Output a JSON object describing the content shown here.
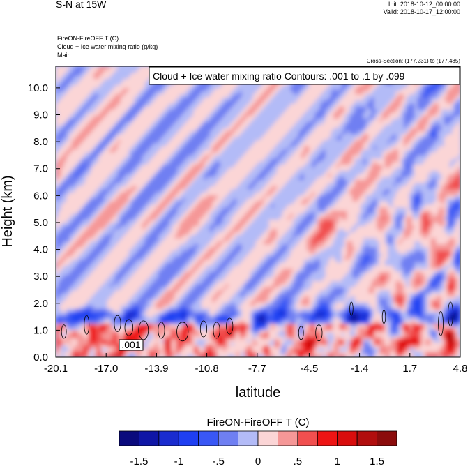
{
  "header": {
    "title": "S-N at 15W",
    "init": "Init: 2018-10-12_00:00:00",
    "valid": "Valid: 2018-10-17_12:00:00",
    "field1": "FireON-FireOFF T   (C)",
    "field2": "Cloud + Ice water mixing ratio   (g/kg)",
    "domain": "Main",
    "cross_section": "Cross-Section: (177,231) to (177,485)"
  },
  "chart_data": {
    "type": "heatmap",
    "contour_legend": "Cloud + Ice water mixing ratio Contours: .001 to .1 by .099",
    "contour_label": ".001",
    "xlabel": "latitude",
    "ylabel": "Height (km)",
    "xlim": [
      -20.1,
      4.8
    ],
    "ylim": [
      0.0,
      10.8
    ],
    "x_ticks": [
      "-20.1",
      "-17.0",
      "-13.9",
      "-10.8",
      "-7.7",
      "-4.5",
      "-1.4",
      "1.7",
      "4.8"
    ],
    "y_ticks": [
      "0.0",
      "1.0",
      "2.0",
      "3.0",
      "4.0",
      "5.0",
      "6.0",
      "7.0",
      "8.0",
      "9.0",
      "10.0"
    ],
    "colorbar": {
      "title": "FireON-FireOFF T  (C)",
      "levels": [
        -1.75,
        -1.5,
        -1.25,
        -1.0,
        -0.75,
        -0.5,
        -0.25,
        0,
        0.25,
        0.5,
        0.75,
        1.0,
        1.25,
        1.5,
        1.75
      ],
      "labels": [
        "-1.5",
        "-1",
        "-.5",
        "0",
        ".5",
        "1",
        "1.5"
      ],
      "colors": [
        "#0a0a7d",
        "#0f16a6",
        "#1a2ccf",
        "#1f3ff2",
        "#3957f5",
        "#6f7ff2",
        "#b3bbf7",
        "#fbd5d6",
        "#f59797",
        "#f14f4f",
        "#ee1414",
        "#d90d0d",
        "#b10e0e",
        "#8b0c0c"
      ]
    }
  }
}
